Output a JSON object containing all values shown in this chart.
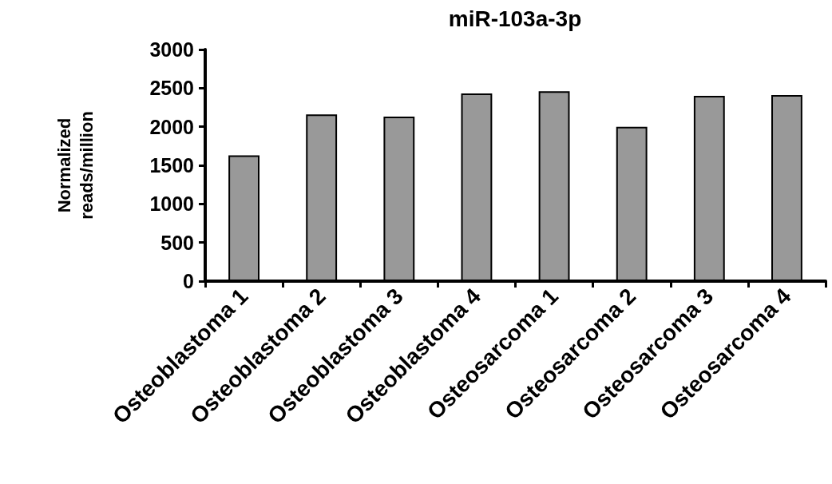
{
  "chart_data": {
    "type": "bar",
    "title": "miR-103a-3p",
    "ylabel": "Normalized\nreads/million",
    "categories": [
      "Osteoblastoma 1",
      "Osteoblastoma 2",
      "Osteoblastoma 3",
      "Osteoblastoma 4",
      "Osteosarcoma 1",
      "Osteosarcoma 2",
      "Osteosarcoma 3",
      "Osteosarcoma 4"
    ],
    "values": [
      1630,
      2160,
      2130,
      2430,
      2460,
      2000,
      2400,
      2410
    ],
    "color": "#999999",
    "ylim": [
      0,
      3000
    ],
    "yticks": [
      0,
      500,
      1000,
      1500,
      2000,
      2500,
      3000
    ],
    "grid": false
  }
}
